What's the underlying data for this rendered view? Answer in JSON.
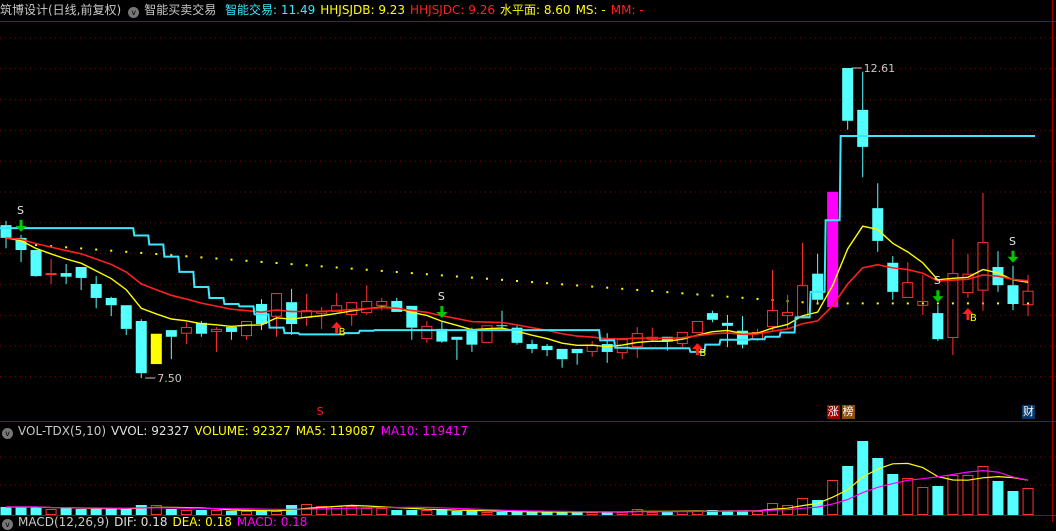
{
  "header": {
    "title": "筑博设计(日线,前复权)",
    "indicator_name": "智能买卖交易",
    "items": [
      {
        "label": "智能交易: 11.49",
        "color": "#3ee6ff"
      },
      {
        "label": "HHJSJDB: 9.23",
        "color": "#ffff00"
      },
      {
        "label": "HHJSJDC: 9.26",
        "color": "#ff2020"
      },
      {
        "label": "水平面: 8.60",
        "color": "#ffff00"
      },
      {
        "label": "MS: -",
        "color": "#ffff00"
      },
      {
        "label": "MM: -",
        "color": "#ff2020"
      }
    ]
  },
  "volume_header": {
    "name": "VOL-TDX(5,10)",
    "items": [
      {
        "label": "VVOL: 92327",
        "color": "#e0e0e0"
      },
      {
        "label": "VOLUME: 92327",
        "color": "#ffff00"
      },
      {
        "label": "MA5: 119087",
        "color": "#ffff00"
      },
      {
        "label": "MA10: 119417",
        "color": "#ff00ff"
      }
    ]
  },
  "macd_header": {
    "name": "MACD(12,26,9)",
    "items": [
      {
        "label": "DIF: 0.18",
        "color": "#e0e0e0"
      },
      {
        "label": "DEA: 0.18",
        "color": "#ffff00"
      },
      {
        "label": "MACD: 0.18",
        "color": "#ff00ff"
      }
    ]
  },
  "chart_data": {
    "type": "candlestick",
    "price_range": [
      7.5,
      12.61
    ],
    "high_label": "12.61",
    "low_label": "7.50",
    "high_bar": 56,
    "low_bar": 9,
    "colors": {
      "up": "#ff3232",
      "down": "#54ffff",
      "signal_line": "#3ee6ff",
      "ma_fast": "#ffff00",
      "ma_slow": "#ff2020",
      "level": "#ffff00",
      "special_limit_up": "#ff00ff",
      "special_yellow": "#ffff00"
    },
    "special_bars": [
      {
        "bar": 10,
        "color": "#ffff00"
      },
      {
        "bar": 55,
        "color": "#ff00ff"
      }
    ],
    "ohlc": [
      [
        10.02,
        10.09,
        9.64,
        9.81
      ],
      [
        9.81,
        9.86,
        9.41,
        9.61
      ],
      [
        9.61,
        9.61,
        9.17,
        9.18
      ],
      [
        9.22,
        9.46,
        9.05,
        9.23
      ],
      [
        9.23,
        9.38,
        9.05,
        9.17
      ],
      [
        9.33,
        9.33,
        8.95,
        9.15
      ],
      [
        9.05,
        9.18,
        8.65,
        8.82
      ],
      [
        8.82,
        8.84,
        8.52,
        8.7
      ],
      [
        8.7,
        8.7,
        8.21,
        8.31
      ],
      [
        8.44,
        8.47,
        7.5,
        7.58
      ],
      [
        7.73,
        8.23,
        7.73,
        8.23
      ],
      [
        8.29,
        8.29,
        7.81,
        8.18
      ],
      [
        8.23,
        8.42,
        8.06,
        8.34
      ],
      [
        8.41,
        8.44,
        8.18,
        8.23
      ],
      [
        8.26,
        8.34,
        7.93,
        8.31
      ],
      [
        8.34,
        8.36,
        8.13,
        8.26
      ],
      [
        8.19,
        8.44,
        8.13,
        8.44
      ],
      [
        8.72,
        8.8,
        8.29,
        8.39
      ],
      [
        8.51,
        8.9,
        8.18,
        8.9
      ],
      [
        8.75,
        8.97,
        8.21,
        8.39
      ],
      [
        8.49,
        8.89,
        8.36,
        8.62
      ],
      [
        8.56,
        8.67,
        8.31,
        8.61
      ],
      [
        8.59,
        8.9,
        8.59,
        8.7
      ],
      [
        8.54,
        8.75,
        8.36,
        8.75
      ],
      [
        8.57,
        9.03,
        8.54,
        8.77
      ],
      [
        8.69,
        8.82,
        8.61,
        8.77
      ],
      [
        8.77,
        8.82,
        8.59,
        8.59
      ],
      [
        8.69,
        8.69,
        8.13,
        8.33
      ],
      [
        8.14,
        8.44,
        8.08,
        8.36
      ],
      [
        8.31,
        8.44,
        8.08,
        8.1
      ],
      [
        8.18,
        8.18,
        7.8,
        8.13
      ],
      [
        8.29,
        8.33,
        7.93,
        8.05
      ],
      [
        8.08,
        8.37,
        8.08,
        8.37
      ],
      [
        8.37,
        8.61,
        8.33,
        8.36
      ],
      [
        8.33,
        8.36,
        8.05,
        8.08
      ],
      [
        8.06,
        8.13,
        7.91,
        7.98
      ],
      [
        8.03,
        8.06,
        7.86,
        7.96
      ],
      [
        7.98,
        7.98,
        7.67,
        7.81
      ],
      [
        7.98,
        7.98,
        7.72,
        7.91
      ],
      [
        7.93,
        8.11,
        7.85,
        8.05
      ],
      [
        8.06,
        8.24,
        7.75,
        7.93
      ],
      [
        7.91,
        8.14,
        7.81,
        8.14
      ],
      [
        8.01,
        8.34,
        7.83,
        8.24
      ],
      [
        8.13,
        8.33,
        8.1,
        8.18
      ],
      [
        8.18,
        8.18,
        7.95,
        8.1
      ],
      [
        8.06,
        8.26,
        8.01,
        8.26
      ],
      [
        8.24,
        8.44,
        8.24,
        8.44
      ],
      [
        8.57,
        8.61,
        8.42,
        8.46
      ],
      [
        8.41,
        8.54,
        8.01,
        8.36
      ],
      [
        8.28,
        8.52,
        7.99,
        8.05
      ],
      [
        8.13,
        8.31,
        8.11,
        8.26
      ],
      [
        8.34,
        9.28,
        8.26,
        8.62
      ],
      [
        8.52,
        8.87,
        8.29,
        8.59
      ],
      [
        8.51,
        9.73,
        8.51,
        9.03
      ],
      [
        9.22,
        9.55,
        8.71,
        8.79
      ],
      [
        8.67,
        10.57,
        8.67,
        10.57
      ],
      [
        12.61,
        12.61,
        11.59,
        11.74
      ],
      [
        11.92,
        12.55,
        10.81,
        11.31
      ],
      [
        10.3,
        10.71,
        9.58,
        9.76
      ],
      [
        9.4,
        9.51,
        8.79,
        8.92
      ],
      [
        8.82,
        9.41,
        8.82,
        9.08
      ],
      [
        8.69,
        9.2,
        8.54,
        8.77
      ],
      [
        8.57,
        8.7,
        8.11,
        8.14
      ],
      [
        8.16,
        9.79,
        7.88,
        9.23
      ],
      [
        8.9,
        9.55,
        8.82,
        9.22
      ],
      [
        8.94,
        10.55,
        8.61,
        9.74
      ],
      [
        9.33,
        9.59,
        8.92,
        9.03
      ],
      [
        9.03,
        9.35,
        8.62,
        8.72
      ],
      [
        8.7,
        9.2,
        8.52,
        8.94
      ]
    ],
    "signal_line": [
      9.97,
      9.97,
      9.97,
      9.97,
      9.97,
      9.97,
      9.97,
      9.97,
      9.97,
      9.85,
      9.7,
      9.5,
      9.25,
      9.0,
      8.82,
      8.72,
      8.68,
      8.55,
      8.33,
      8.24,
      8.22,
      8.22,
      8.22,
      8.24,
      8.28,
      8.29,
      8.29,
      8.29,
      8.29,
      8.29,
      8.29,
      8.29,
      8.29,
      8.29,
      8.29,
      8.29,
      8.29,
      8.29,
      8.29,
      8.29,
      8.12,
      8.0,
      7.99,
      7.99,
      7.99,
      7.99,
      7.93,
      8.05,
      8.13,
      8.13,
      8.14,
      8.18,
      8.25,
      8.5,
      8.92,
      10.1,
      11.49,
      11.49,
      11.49,
      11.49,
      11.49,
      11.49,
      11.49,
      11.49,
      11.49,
      11.49,
      11.49,
      11.49,
      11.49
    ],
    "level_line": {
      "start_bar": 1,
      "start_value": 9.71,
      "end_bar": 54,
      "end_value": 8.73
    },
    "sell_signals": [
      {
        "bar": 1,
        "label": "S"
      },
      {
        "bar": 29,
        "label": "S"
      },
      {
        "bar": 62,
        "label": "S"
      },
      {
        "bar": 67,
        "label": "S"
      }
    ],
    "buy_signals": [
      {
        "bar": 22,
        "label": "B"
      },
      {
        "bar": 46,
        "label": "B"
      },
      {
        "bar": 64,
        "label": "B"
      }
    ],
    "event_badges": [
      {
        "bar": 21,
        "label": "S",
        "color": "#ff2020",
        "bg": "transparent"
      },
      {
        "bar": 55,
        "label": "涨",
        "color": "#ffffff",
        "bg": "#a00000"
      },
      {
        "bar": 56,
        "label": "榜",
        "color": "#ffffff",
        "bg": "#8a4a10"
      },
      {
        "bar": 68,
        "label": "财",
        "color": "#ffffff",
        "bg": "#0a3a6a"
      }
    ],
    "volume": [
      27360,
      27360,
      27360,
      20520,
      23940,
      20520,
      20520,
      20520,
      20520,
      34200,
      34200,
      20520,
      17100,
      17100,
      17100,
      13680,
      13680,
      13680,
      13680,
      34200,
      37620,
      30780,
      30780,
      30780,
      23940,
      23940,
      17100,
      17100,
      17100,
      17100,
      13680,
      13680,
      10260,
      10260,
      10260,
      10260,
      10260,
      10260,
      10260,
      10260,
      10260,
      10260,
      20520,
      10260,
      10260,
      13680,
      13680,
      17100,
      13680,
      13680,
      13680,
      41040,
      34200,
      58140,
      51300,
      119700,
      167580,
      253080,
      194940,
      140220,
      126540,
      95760,
      99180,
      136800,
      136800,
      167580,
      116280,
      82080,
      92327
    ]
  }
}
